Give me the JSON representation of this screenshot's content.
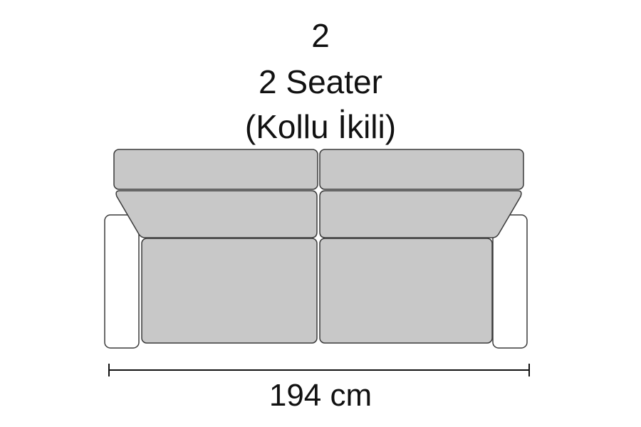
{
  "heading": {
    "number": "2",
    "name": "2 Seater",
    "subtitle": "(Kollu İkili)"
  },
  "dimension": {
    "width_label": "194 cm"
  },
  "colors": {
    "cushion_fill": "#c8c8c8",
    "arm_fill": "#ffffff",
    "outline": "#3a3a3a",
    "dimension_line": "#111111"
  }
}
